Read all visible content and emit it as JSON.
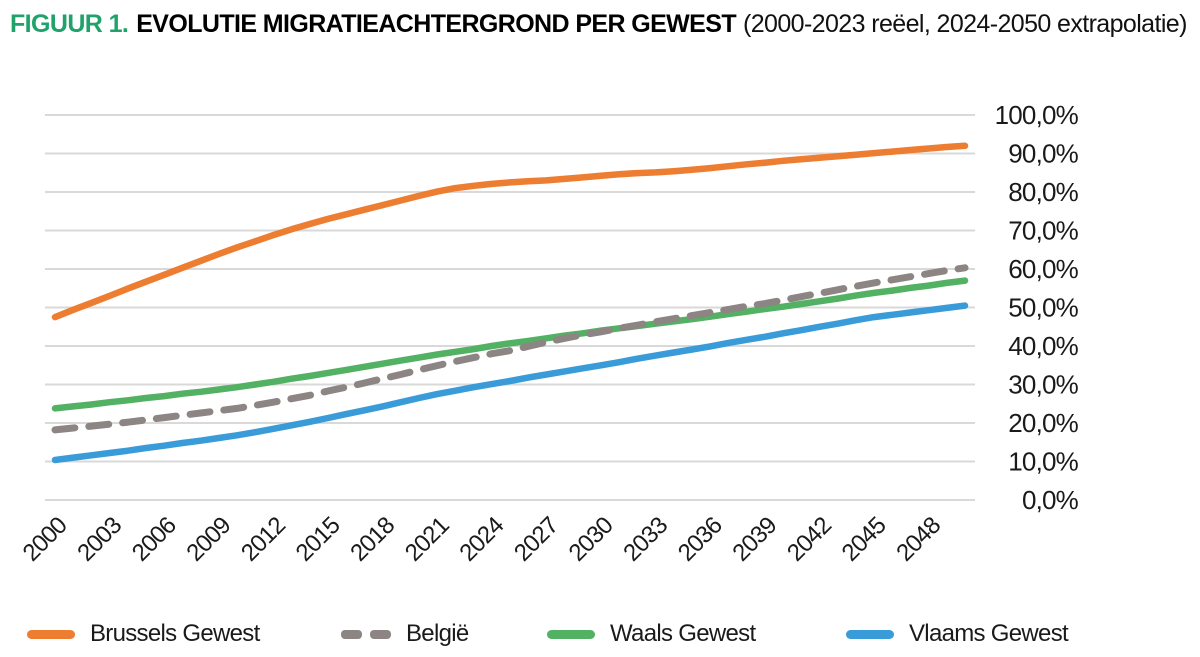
{
  "header": {
    "figure_label": "FIGUUR 1.",
    "title": "EVOLUTIE MIGRATIEACHTERGROND PER GEWEST",
    "subtitle": "(2000-2023 reëel, 2024-2050 extrapolatie)"
  },
  "colors": {
    "figure_label_green": "#1FA36A",
    "text": "#1A1A1A",
    "gridline": "#D9D9D9",
    "brussels_orange": "#ED7D31",
    "belgie_gray": "#8C8584",
    "waals_green": "#53B163",
    "vlaams_blue": "#3A9BD9"
  },
  "legend": [
    {
      "label": "Brussels Gewest",
      "color": "#ED7D31",
      "dashed": false
    },
    {
      "label": "België",
      "color": "#8C8584",
      "dashed": true
    },
    {
      "label": "Waals Gewest",
      "color": "#53B163",
      "dashed": false
    },
    {
      "label": "Vlaams Gewest",
      "color": "#3A9BD9",
      "dashed": false
    }
  ],
  "chart_data": {
    "type": "line",
    "title": "FIGUUR 1. EVOLUTIE MIGRATIEACHTERGROND PER GEWEST (2000-2023 reëel, 2024-2050 extrapolatie)",
    "xlabel": "",
    "ylabel": "",
    "xlim": [
      2000,
      2050
    ],
    "ylim": [
      0,
      100
    ],
    "grid": "horizontal",
    "legend_position": "bottom",
    "x_tick_labels": [
      "2000",
      "2003",
      "2006",
      "2009",
      "2012",
      "2015",
      "2018",
      "2021",
      "2024",
      "2027",
      "2030",
      "2033",
      "2036",
      "2039",
      "2042",
      "2045",
      "2048"
    ],
    "y_ticks": [
      0,
      10,
      20,
      30,
      40,
      50,
      60,
      70,
      80,
      90,
      100
    ],
    "y_tick_labels": [
      "0,0%",
      "10,0%",
      "20,0%",
      "30,0%",
      "40,0%",
      "50,0%",
      "60,0%",
      "70,0%",
      "80,0%",
      "90,0%",
      "100,0%"
    ],
    "x": [
      2000,
      2001,
      2002,
      2003,
      2004,
      2005,
      2006,
      2007,
      2008,
      2009,
      2010,
      2011,
      2012,
      2013,
      2014,
      2015,
      2016,
      2017,
      2018,
      2019,
      2020,
      2021,
      2022,
      2023,
      2024,
      2025,
      2026,
      2027,
      2028,
      2029,
      2030,
      2031,
      2032,
      2033,
      2034,
      2035,
      2036,
      2037,
      2038,
      2039,
      2040,
      2041,
      2042,
      2043,
      2044,
      2045,
      2046,
      2047,
      2048,
      2049,
      2050
    ],
    "series": [
      {
        "name": "Brussels Gewest",
        "color": "#ED7D31",
        "style": "solid",
        "values": [
          47.5,
          49.4,
          51.2,
          53.0,
          54.9,
          56.7,
          58.5,
          60.3,
          62.1,
          63.9,
          65.6,
          67.2,
          68.8,
          70.3,
          71.7,
          73.0,
          74.2,
          75.4,
          76.6,
          77.8,
          79.0,
          80.1,
          81.0,
          81.6,
          82.1,
          82.5,
          82.8,
          83.0,
          83.4,
          83.8,
          84.2,
          84.6,
          84.9,
          85.1,
          85.4,
          85.8,
          86.2,
          86.7,
          87.2,
          87.6,
          88.1,
          88.5,
          88.9,
          89.3,
          89.7,
          90.1,
          90.5,
          90.9,
          91.3,
          91.7,
          92.0
        ]
      },
      {
        "name": "België",
        "color": "#8C8584",
        "style": "dashed",
        "values": [
          18.2,
          18.7,
          19.2,
          19.7,
          20.2,
          20.8,
          21.4,
          22.0,
          22.6,
          23.2,
          23.8,
          24.6,
          25.4,
          26.3,
          27.2,
          28.3,
          29.3,
          30.4,
          31.5,
          32.6,
          33.8,
          34.9,
          36.0,
          37.0,
          38.0,
          38.8,
          39.9,
          41.0,
          42.0,
          42.9,
          43.7,
          44.6,
          45.4,
          46.3,
          47.1,
          47.9,
          48.7,
          49.5,
          50.3,
          51.0,
          51.9,
          52.8,
          53.7,
          54.6,
          55.5,
          56.4,
          57.2,
          58.0,
          58.8,
          59.6,
          60.3
        ]
      },
      {
        "name": "Waals Gewest",
        "color": "#53B163",
        "style": "solid",
        "values": [
          23.8,
          24.3,
          24.8,
          25.4,
          25.9,
          26.5,
          27.0,
          27.6,
          28.1,
          28.7,
          29.3,
          30.0,
          30.7,
          31.5,
          32.2,
          33.0,
          33.8,
          34.6,
          35.4,
          36.2,
          37.0,
          37.8,
          38.5,
          39.2,
          40.0,
          40.7,
          41.3,
          42.0,
          42.7,
          43.3,
          44.0,
          44.6,
          45.2,
          45.8,
          46.4,
          47.0,
          47.6,
          48.3,
          48.9,
          49.6,
          50.2,
          50.9,
          51.6,
          52.3,
          53.1,
          53.8,
          54.4,
          55.1,
          55.7,
          56.4,
          57.0
        ]
      },
      {
        "name": "Vlaams Gewest",
        "color": "#3A9BD9",
        "style": "solid",
        "values": [
          10.4,
          11.0,
          11.6,
          12.2,
          12.8,
          13.5,
          14.1,
          14.8,
          15.4,
          16.1,
          16.8,
          17.6,
          18.5,
          19.4,
          20.3,
          21.3,
          22.3,
          23.3,
          24.3,
          25.4,
          26.5,
          27.5,
          28.4,
          29.3,
          30.1,
          30.9,
          31.8,
          32.6,
          33.4,
          34.2,
          35.0,
          35.8,
          36.7,
          37.5,
          38.3,
          39.1,
          39.9,
          40.8,
          41.6,
          42.4,
          43.3,
          44.1,
          45.0,
          45.8,
          46.7,
          47.5,
          48.1,
          48.7,
          49.3,
          49.9,
          50.5
        ]
      }
    ]
  }
}
